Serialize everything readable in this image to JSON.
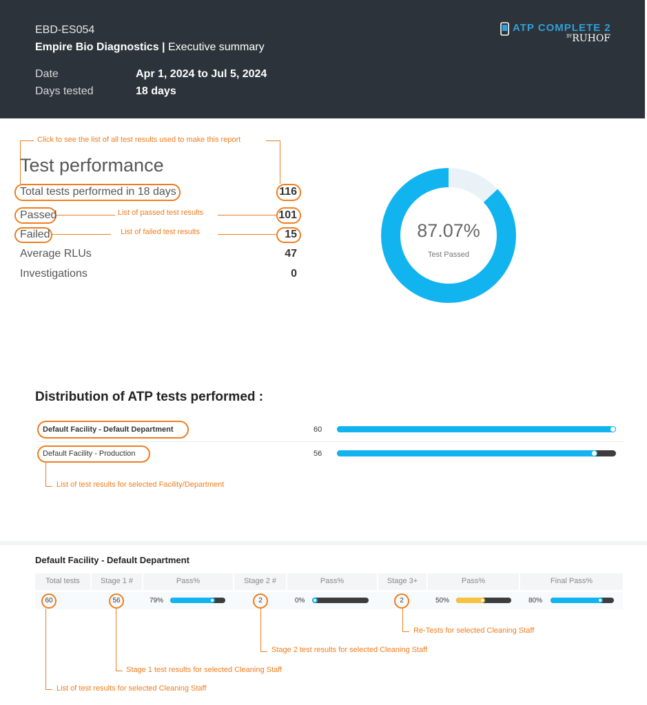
{
  "header": {
    "code": "EBD-ES054",
    "company": "Empire Bio Diagnostics",
    "separator": "|",
    "report": "Executive summary",
    "date_label": "Date",
    "date_value": "Apr 1, 2024 to Jul 5, 2024",
    "days_label": "Days tested",
    "days_value": "18 days",
    "logo_main": "ATP COMPLETE 2",
    "logo_by": "BY",
    "logo_brand": "RUHOF"
  },
  "annotations": {
    "all_results": "Click to see the list of all test results used to make this report",
    "passed": "List of passed test results",
    "failed": "List of failed test results",
    "facility": "List of test results for selected Facility/Department",
    "retests": "Re-Tests for selected Cleaning Staff",
    "stage2": "Stage 2 test results for selected Cleaning Staff",
    "stage1": "Stage 1 test results for selected Cleaning Staff",
    "staff": "List of test results for selected Cleaning Staff"
  },
  "performance": {
    "title": "Test performance",
    "total_label": "Total tests performed in 18 days",
    "total_value": "116",
    "passed_label": "Passed",
    "passed_value": "101",
    "failed_label": "Failed",
    "failed_value": "15",
    "avg_label": "Average RLUs",
    "avg_value": "47",
    "inv_label": "Investigations",
    "inv_value": "0",
    "pass_percent": "87.07%",
    "pass_fraction": 0.8707,
    "donut_caption": "Test Passed",
    "colors": {
      "pass": "#12b4f0",
      "fail": "#eaf2f8"
    }
  },
  "distribution": {
    "title": "Distribution of ATP tests performed :",
    "rows": [
      {
        "name": "Default Facility - Default Department",
        "value": "60",
        "fill": 1.0
      },
      {
        "name": "Default Facility - Production",
        "value": "56",
        "fill": 0.933
      }
    ]
  },
  "department": {
    "title": "Default Facility - Default Department",
    "headers": [
      "Total tests",
      "Stage 1 #",
      "Pass%",
      "Stage 2 #",
      "Pass%",
      "Stage 3+",
      "Pass%",
      "Final Pass%"
    ],
    "total_tests": "60",
    "stage1_count": "56",
    "stage1_pass": "79%",
    "stage1_fill": 0.79,
    "stage2_count": "2",
    "stage2_pass": "0%",
    "stage2_fill": 0.0,
    "stage3_count": "2",
    "stage3_pass": "50%",
    "stage3_fill": 0.5,
    "final_pass": "80%",
    "final_fill": 0.8,
    "colors": {
      "blue": "#12b4f0",
      "yellow": "#f5c342",
      "dark": "#3d3d3d"
    }
  }
}
